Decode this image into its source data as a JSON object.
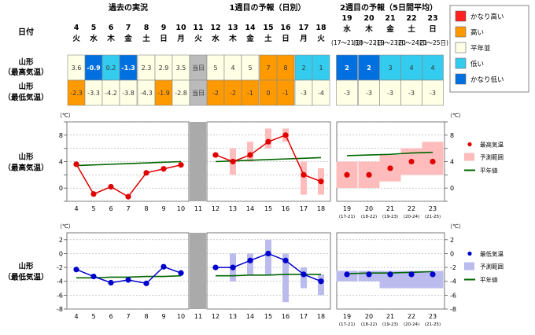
{
  "header": {
    "date_label": "日付",
    "past_title": "過去の実況",
    "week1_title": "1週目の予報（日別）",
    "week2_title": "2週目の予報（5日間平均）"
  },
  "table": {
    "row_high_label_1": "山形",
    "row_high_label_2": "（最高気温）",
    "row_low_label_1": "山形",
    "row_low_label_2": "（最低気温）",
    "today_label": "当日",
    "daily_days": [
      {
        "day": "4",
        "wd": "火",
        "hi": "3.6",
        "hi_cat": "normal",
        "lo": "-2.3",
        "lo_cat": "high"
      },
      {
        "day": "5",
        "wd": "水",
        "hi": "-0.9",
        "hi_cat": "verylow",
        "lo": "-3.3",
        "lo_cat": "normal"
      },
      {
        "day": "6",
        "wd": "木",
        "hi": "0.2",
        "hi_cat": "low",
        "lo": "-4.2",
        "lo_cat": "normal"
      },
      {
        "day": "7",
        "wd": "金",
        "hi": "-1.3",
        "hi_cat": "verylow",
        "lo": "-3.8",
        "lo_cat": "normal"
      },
      {
        "day": "8",
        "wd": "土",
        "hi": "2.3",
        "hi_cat": "normal",
        "lo": "-4.3",
        "lo_cat": "normal"
      },
      {
        "day": "9",
        "wd": "日",
        "hi": "2.9",
        "hi_cat": "normal",
        "lo": "-1.9",
        "lo_cat": "high"
      },
      {
        "day": "10",
        "wd": "月",
        "hi": "3.5",
        "hi_cat": "normal",
        "lo": "-2.8",
        "lo_cat": "normal"
      },
      {
        "day": "11",
        "wd": "火",
        "hi": "当日",
        "hi_cat": "today",
        "lo": "当日",
        "lo_cat": "today"
      },
      {
        "day": "12",
        "wd": "水",
        "hi": "5",
        "hi_cat": "normal",
        "lo": "-2",
        "lo_cat": "high"
      },
      {
        "day": "13",
        "wd": "木",
        "hi": "4",
        "hi_cat": "normal",
        "lo": "-2",
        "lo_cat": "high"
      },
      {
        "day": "14",
        "wd": "金",
        "hi": "5",
        "hi_cat": "normal",
        "lo": "-1",
        "lo_cat": "high"
      },
      {
        "day": "15",
        "wd": "土",
        "hi": "7",
        "hi_cat": "high",
        "lo": "0",
        "lo_cat": "high"
      },
      {
        "day": "16",
        "wd": "日",
        "hi": "8",
        "hi_cat": "high",
        "lo": "-1",
        "lo_cat": "high"
      },
      {
        "day": "17",
        "wd": "月",
        "hi": "2",
        "hi_cat": "low",
        "lo": "-3",
        "lo_cat": "normal"
      },
      {
        "day": "18",
        "wd": "火",
        "hi": "1",
        "hi_cat": "low",
        "lo": "-4",
        "lo_cat": "normal"
      }
    ],
    "week2_days": [
      {
        "day": "19",
        "wd": "水",
        "range": "(17～21日)",
        "hi": "2",
        "hi_cat": "verylow",
        "lo": "-3",
        "lo_cat": "normal"
      },
      {
        "day": "20",
        "wd": "木",
        "range": "(18～22日)",
        "hi": "2",
        "hi_cat": "verylow",
        "lo": "-3",
        "lo_cat": "normal"
      },
      {
        "day": "21",
        "wd": "金",
        "range": "(19～23日)",
        "hi": "3",
        "hi_cat": "low",
        "lo": "-3",
        "lo_cat": "normal"
      },
      {
        "day": "22",
        "wd": "土",
        "range": "(20～24日)",
        "hi": "4",
        "hi_cat": "low",
        "lo": "-3",
        "lo_cat": "normal"
      },
      {
        "day": "23",
        "wd": "日",
        "range": "(21～25日)",
        "hi": "4",
        "hi_cat": "low",
        "lo": "-3",
        "lo_cat": "normal"
      }
    ]
  },
  "legend_categories": [
    {
      "key": "veryhigh",
      "label": "かなり高い",
      "color": "#ff2020"
    },
    {
      "key": "high",
      "label": "高い",
      "color": "#ff9900"
    },
    {
      "key": "normal",
      "label": "平年並",
      "color": "#ffffe6"
    },
    {
      "key": "low",
      "label": "低い",
      "color": "#33ccee"
    },
    {
      "key": "verylow",
      "label": "かなり低い",
      "color": "#0070e0"
    }
  ],
  "colors": {
    "today": "#bbbbbb",
    "high_line": "#e00000",
    "high_range": "#ffbcbc",
    "low_line": "#0000cc",
    "low_range": "#bbbbee",
    "normal_line": "#006600",
    "grid": "#999999",
    "today_band": "#aaaaaa"
  },
  "chart_data": [
    {
      "type": "line",
      "title": "",
      "row_label_1": "山形",
      "row_label_2": "（最高気温）",
      "unit": "（℃）",
      "ylim": [
        -2,
        10
      ],
      "yticks": [
        -2,
        0,
        2,
        4,
        6,
        8,
        10
      ],
      "ytick_labels": [
        "",
        "0",
        "",
        "4",
        "",
        "8",
        ""
      ],
      "x_past": [
        "4",
        "5",
        "6",
        "7",
        "8",
        "9",
        "10"
      ],
      "past_values": [
        3.6,
        -0.9,
        0.2,
        -1.3,
        2.3,
        2.9,
        3.5
      ],
      "today_x": "11",
      "x_week1": [
        "12",
        "13",
        "14",
        "15",
        "16",
        "17",
        "18"
      ],
      "week1_values": [
        5,
        4,
        5,
        7,
        8,
        2,
        1
      ],
      "week1_range": [
        [
          5,
          5
        ],
        [
          2,
          6
        ],
        [
          4,
          7
        ],
        [
          6,
          9
        ],
        [
          7,
          9
        ],
        [
          -1,
          4
        ],
        [
          -1,
          3
        ]
      ],
      "x_week2": [
        "19",
        "20",
        "21",
        "22",
        "23"
      ],
      "x_week2_sub": [
        "(17-21)",
        "(18-22)",
        "(19-23)",
        "(20-24)",
        "(21-25)"
      ],
      "week2_values": [
        2,
        2,
        3,
        4,
        4
      ],
      "week2_range": [
        [
          0,
          4
        ],
        [
          0,
          4
        ],
        [
          1,
          5
        ],
        [
          2,
          6
        ],
        [
          2,
          7
        ]
      ],
      "normal_past": [
        3.4,
        3.5,
        3.6,
        3.7,
        3.8,
        3.9,
        4.0
      ],
      "normal_week1": [
        4.0,
        4.1,
        4.2,
        4.3,
        4.4,
        4.5,
        4.6
      ],
      "normal_week2": [
        4.9,
        5.0,
        5.1,
        5.3,
        5.4
      ],
      "legend": {
        "point": "最高気温",
        "range": "予測範囲",
        "normal": "平年値"
      }
    },
    {
      "type": "line",
      "title": "",
      "row_label_1": "山形",
      "row_label_2": "（最低気温）",
      "unit": "（℃）",
      "ylim": [
        -8,
        3
      ],
      "yticks": [
        -8,
        -6,
        -4,
        -2,
        0,
        2
      ],
      "ytick_labels": [
        "-8",
        "-6",
        "-4",
        "-2",
        "0",
        "2"
      ],
      "x_past": [
        "4",
        "5",
        "6",
        "7",
        "8",
        "9",
        "10"
      ],
      "past_values": [
        -2.3,
        -3.3,
        -4.2,
        -3.8,
        -4.3,
        -1.9,
        -2.8
      ],
      "today_x": "11",
      "x_week1": [
        "12",
        "13",
        "14",
        "15",
        "16",
        "17",
        "18"
      ],
      "week1_values": [
        -2,
        -2,
        -1,
        0,
        -1,
        -3,
        -4
      ],
      "week1_range": [
        [
          -2,
          -2
        ],
        [
          -4,
          0
        ],
        [
          -3,
          0
        ],
        [
          -3,
          2
        ],
        [
          -7,
          0
        ],
        [
          -5,
          -2
        ],
        [
          -6,
          -3
        ]
      ],
      "x_week2": [
        "19",
        "20",
        "21",
        "22",
        "23"
      ],
      "x_week2_sub": [
        "(17-21)",
        "(18-22)",
        "(19-23)",
        "(20-24)",
        "(21-25)"
      ],
      "week2_values": [
        -3,
        -3,
        -3,
        -3,
        -3
      ],
      "week2_range": [
        [
          -4,
          -2.5
        ],
        [
          -4,
          -2.5
        ],
        [
          -5,
          -2.5
        ],
        [
          -5,
          -2.5
        ],
        [
          -5,
          -2.5
        ]
      ],
      "normal_past": [
        -3.5,
        -3.5,
        -3.4,
        -3.4,
        -3.3,
        -3.3,
        -3.2
      ],
      "normal_week1": [
        -3.2,
        -3.2,
        -3.1,
        -3.1,
        -3.0,
        -3.0,
        -3.0
      ],
      "normal_week2": [
        -2.9,
        -2.8,
        -2.8,
        -2.7,
        -2.6
      ],
      "legend": {
        "point": "最低気温",
        "range": "予測範囲",
        "normal": "平年値"
      }
    }
  ]
}
